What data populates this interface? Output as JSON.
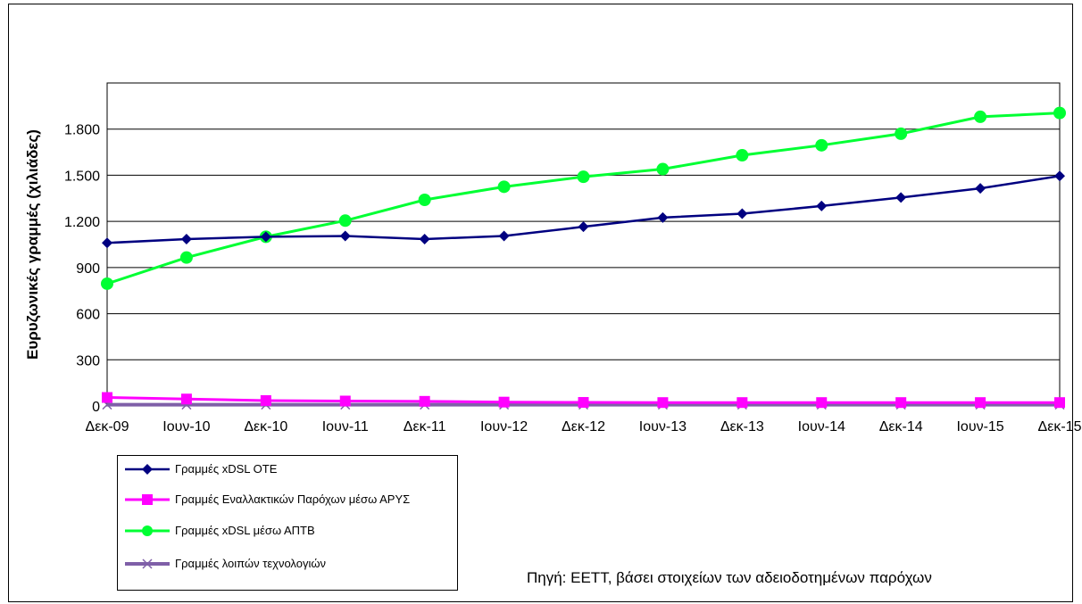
{
  "chart_data": {
    "type": "line",
    "ylabel": "Ευρυζωνικές γραμμές (χιλιάδες)",
    "xlabel": "",
    "categories": [
      "Δεκ-09",
      "Ιουν-10",
      "Δεκ-10",
      "Ιουν-11",
      "Δεκ-11",
      "Ιουν-12",
      "Δεκ-12",
      "Ιουν-13",
      "Δεκ-13",
      "Ιουν-14",
      "Δεκ-14",
      "Ιουν-15",
      "Δεκ-15"
    ],
    "ylim": [
      0,
      2100
    ],
    "yticks": [
      0,
      300,
      600,
      900,
      1200,
      1500,
      1800
    ],
    "ytick_labels": [
      "0",
      "300",
      "600",
      "900",
      "1.200",
      "1.500",
      "1.800"
    ],
    "grid": "horizontal",
    "legend_position": "bottom-left",
    "series": [
      {
        "name": "Γραμμές xDSL ΟΤΕ",
        "color": "#000080",
        "marker": "diamond",
        "values": [
          1060,
          1085,
          1100,
          1105,
          1085,
          1105,
          1165,
          1225,
          1250,
          1300,
          1355,
          1415,
          1495
        ]
      },
      {
        "name": "Γραμμές Εναλλακτικών Παρόχων μέσω ΑΡΥΣ",
        "color": "#ff00ff",
        "marker": "square",
        "values": [
          55,
          45,
          35,
          32,
          30,
          25,
          23,
          22,
          22,
          22,
          22,
          22,
          22
        ]
      },
      {
        "name": "Γραμμές xDSL μέσω ΑΠΤΒ",
        "color": "#00ff33",
        "marker": "circle",
        "values": [
          795,
          965,
          1100,
          1205,
          1340,
          1425,
          1490,
          1540,
          1630,
          1695,
          1770,
          1880,
          1905
        ]
      },
      {
        "name": "Γραμμές λοιπών τεχνολογιών",
        "color": "#7f5fa8",
        "marker": "x",
        "values": [
          8,
          8,
          8,
          8,
          8,
          8,
          8,
          8,
          8,
          8,
          8,
          8,
          8
        ]
      }
    ]
  },
  "source_note": "Πηγή: ΕΕΤΤ, βάσει στοιχείων των αδειοδοτημένων παρόχων"
}
